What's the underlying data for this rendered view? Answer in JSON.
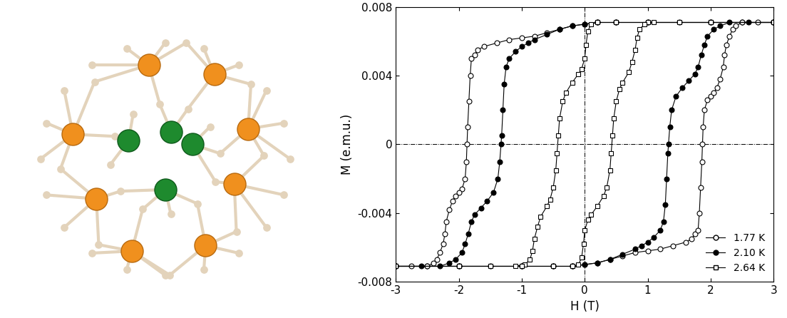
{
  "chart_data": {
    "type": "line",
    "xlabel": "H (T)",
    "ylabel": "M (e.m.u.)",
    "xlim": [
      -3,
      3
    ],
    "ylim": [
      -0.008,
      0.008
    ],
    "xticks": [
      -3,
      -2,
      -1,
      0,
      1,
      2,
      3
    ],
    "yticks": [
      -0.008,
      -0.004,
      0,
      0.004,
      0.008
    ],
    "legend": "lower right",
    "series": [
      {
        "name": "1.77 K",
        "color": "#000000",
        "marker": "circle_open",
        "x": [
          3.0,
          2.5,
          2.0,
          1.5,
          1.0,
          0.5,
          0.2,
          0.0,
          -0.2,
          -0.4,
          -0.6,
          -0.8,
          -1.0,
          -1.2,
          -1.4,
          -1.6,
          -1.7,
          -1.75,
          -1.8,
          -1.82,
          -1.84,
          -1.86,
          -1.87,
          -1.88,
          -1.9,
          -1.95,
          -2.0,
          -2.05,
          -2.1,
          -2.15,
          -2.2,
          -2.22,
          -2.25,
          -2.3,
          -2.35,
          -2.4,
          -2.5,
          -2.75,
          -3.0,
          -3.0,
          -2.5,
          -2.0,
          -1.5,
          -1.0,
          -0.5,
          -0.2,
          0.0,
          0.2,
          0.4,
          0.6,
          0.8,
          1.0,
          1.2,
          1.4,
          1.6,
          1.7,
          1.75,
          1.8,
          1.82,
          1.84,
          1.86,
          1.87,
          1.88,
          1.9,
          1.95,
          2.0,
          2.05,
          2.1,
          2.15,
          2.2,
          2.22,
          2.25,
          2.3,
          2.35,
          2.4,
          2.5,
          2.75,
          3.0
        ],
        "values": [
          0.0071,
          0.0071,
          0.0071,
          0.0071,
          0.0071,
          0.0071,
          0.0071,
          0.007,
          0.0069,
          0.0067,
          0.0065,
          0.0063,
          0.0062,
          0.0061,
          0.0059,
          0.0057,
          0.0055,
          0.0052,
          0.005,
          0.004,
          0.0025,
          0.001,
          0,
          -0.001,
          -0.002,
          -0.0026,
          -0.0028,
          -0.003,
          -0.0033,
          -0.0038,
          -0.0045,
          -0.0052,
          -0.0058,
          -0.0063,
          -0.0067,
          -0.0069,
          -0.0071,
          -0.0071,
          -0.0071,
          -0.0071,
          -0.0071,
          -0.0071,
          -0.0071,
          -0.0071,
          -0.0071,
          -0.0071,
          -0.007,
          -0.0069,
          -0.0067,
          -0.0065,
          -0.0063,
          -0.0062,
          -0.0061,
          -0.0059,
          -0.0057,
          -0.0055,
          -0.0052,
          -0.005,
          -0.004,
          -0.0025,
          -0.001,
          0,
          0.001,
          0.002,
          0.0026,
          0.0028,
          0.003,
          0.0033,
          0.0038,
          0.0045,
          0.0052,
          0.0058,
          0.0063,
          0.0067,
          0.0069,
          0.0071,
          0.0071,
          0.0071
        ]
      },
      {
        "name": "2.10 K",
        "color": "#000000",
        "marker": "circle",
        "x": [
          3.0,
          2.0,
          1.0,
          0.5,
          0.2,
          0.0,
          -0.2,
          -0.4,
          -0.6,
          -0.8,
          -0.9,
          -1.0,
          -1.1,
          -1.2,
          -1.25,
          -1.28,
          -1.3,
          -1.32,
          -1.33,
          -1.35,
          -1.38,
          -1.45,
          -1.55,
          -1.65,
          -1.75,
          -1.8,
          -1.85,
          -1.9,
          -1.95,
          -2.05,
          -2.15,
          -2.3,
          -2.6,
          -3.0,
          -3.0,
          -2.0,
          -1.0,
          -0.5,
          -0.2,
          0.0,
          0.2,
          0.4,
          0.6,
          0.8,
          0.9,
          1.0,
          1.1,
          1.2,
          1.25,
          1.28,
          1.3,
          1.32,
          1.33,
          1.35,
          1.38,
          1.45,
          1.55,
          1.65,
          1.75,
          1.8,
          1.85,
          1.9,
          1.95,
          2.05,
          2.15,
          2.3,
          2.6,
          3.0
        ],
        "values": [
          0.0071,
          0.0071,
          0.0071,
          0.0071,
          0.0071,
          0.007,
          0.0069,
          0.0067,
          0.0064,
          0.0061,
          0.0059,
          0.0057,
          0.0054,
          0.005,
          0.0045,
          0.0035,
          0.002,
          0.0005,
          0,
          -0.001,
          -0.002,
          -0.0028,
          -0.0033,
          -0.0037,
          -0.0041,
          -0.0045,
          -0.0052,
          -0.0058,
          -0.0063,
          -0.0067,
          -0.0069,
          -0.0071,
          -0.0071,
          -0.0071,
          -0.0071,
          -0.0071,
          -0.0071,
          -0.0071,
          -0.0071,
          -0.007,
          -0.0069,
          -0.0067,
          -0.0064,
          -0.0061,
          -0.0059,
          -0.0057,
          -0.0054,
          -0.005,
          -0.0045,
          -0.0035,
          -0.002,
          -0.0005,
          0,
          0.001,
          0.002,
          0.0028,
          0.0033,
          0.0037,
          0.0041,
          0.0045,
          0.0052,
          0.0058,
          0.0063,
          0.0067,
          0.0069,
          0.0071,
          0.0071,
          0.0071
        ]
      },
      {
        "name": "2.64 K",
        "color": "#000000",
        "marker": "square_open",
        "x": [
          3.0,
          2.0,
          1.0,
          0.5,
          0.2,
          0.1,
          0.05,
          0.02,
          0.0,
          -0.05,
          -0.1,
          -0.2,
          -0.3,
          -0.35,
          -0.4,
          -0.42,
          -0.44,
          -0.46,
          -0.5,
          -0.55,
          -0.6,
          -0.7,
          -0.75,
          -0.8,
          -0.83,
          -0.87,
          -0.95,
          -1.1,
          -1.5,
          -2.0,
          -3.0,
          -3.0,
          -2.0,
          -1.0,
          -0.5,
          -0.2,
          -0.1,
          -0.05,
          -0.02,
          0.0,
          0.05,
          0.1,
          0.2,
          0.3,
          0.35,
          0.4,
          0.42,
          0.44,
          0.46,
          0.5,
          0.55,
          0.6,
          0.7,
          0.75,
          0.8,
          0.83,
          0.87,
          0.95,
          1.1,
          1.5,
          2.0,
          3.0
        ],
        "values": [
          0.0071,
          0.0071,
          0.0071,
          0.0071,
          0.0071,
          0.007,
          0.0066,
          0.0058,
          0.005,
          0.0044,
          0.0041,
          0.0036,
          0.003,
          0.0025,
          0.0015,
          0.0005,
          -0.0005,
          -0.0015,
          -0.0025,
          -0.0032,
          -0.0036,
          -0.0042,
          -0.0048,
          -0.0055,
          -0.0062,
          -0.0067,
          -0.007,
          -0.0071,
          -0.0071,
          -0.0071,
          -0.0071,
          -0.0071,
          -0.0071,
          -0.0071,
          -0.0071,
          -0.0071,
          -0.007,
          -0.0066,
          -0.0058,
          -0.005,
          -0.0044,
          -0.0041,
          -0.0036,
          -0.003,
          -0.0025,
          -0.0015,
          -0.0005,
          0.0005,
          0.0015,
          0.0025,
          0.0032,
          0.0036,
          0.0042,
          0.0048,
          0.0055,
          0.0062,
          0.0067,
          0.007,
          0.0071,
          0.0071,
          0.0071,
          0.0071
        ]
      }
    ]
  }
}
